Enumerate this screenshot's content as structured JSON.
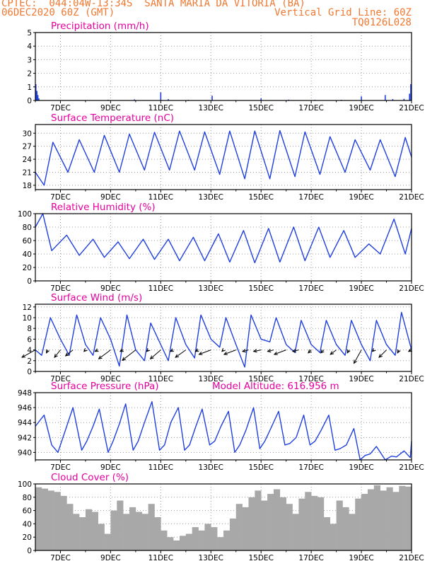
{
  "header": {
    "line1": "CPTEC:  044:04W-13:34S  SANTA MARIA DA VITORIA (BA)",
    "line2_left": "06DEC2020 60Z (GMT)",
    "line2_right": "Vertical Grid Line: 60Z",
    "line3_right": "TQ0126L028"
  },
  "colors": {
    "header": "#f07830",
    "title": "#e6009e",
    "line": "#1f3fe0",
    "cloud": "#a8a8a8",
    "grid": "#9a9a9a"
  },
  "chart_data": [
    {
      "type": "bar",
      "title": "Precipitation (mm/h)",
      "x_tick_labels": [
        "7DEC",
        "9DEC",
        "11DEC",
        "13DEC",
        "15DEC",
        "17DEC",
        "19DEC",
        "21DEC"
      ],
      "x_range": [
        6.0,
        21.0
      ],
      "ylim": [
        0,
        5
      ],
      "y_ticks": [
        0,
        1,
        2,
        3,
        4,
        5
      ],
      "x": [
        6.02,
        6.06,
        6.1,
        6.14,
        8.9,
        9.95,
        11.0,
        11.3,
        12.1,
        13.05,
        15.0,
        16.1,
        17.15,
        18.2,
        19.0,
        19.95,
        20.25,
        20.7,
        20.92,
        20.97
      ],
      "values": [
        1.2,
        0.7,
        0.4,
        0.15,
        0.05,
        0.08,
        0.6,
        0.1,
        0.05,
        0.35,
        0.15,
        0.06,
        0.05,
        0.05,
        0.3,
        0.4,
        0.1,
        0.12,
        0.5,
        1.2
      ]
    },
    {
      "type": "line",
      "title": "Surface Temperature (nC)",
      "x_tick_labels": [
        "7DEC",
        "9DEC",
        "11DEC",
        "13DEC",
        "15DEC",
        "17DEC",
        "19DEC",
        "21DEC"
      ],
      "ylim": [
        17,
        32
      ],
      "y_ticks": [
        18,
        21,
        24,
        27,
        30
      ],
      "series": [
        {
          "values": [
            [
              6.0,
              21.0
            ],
            [
              6.35,
              18.0
            ],
            [
              6.7,
              27.9
            ],
            [
              7.3,
              21.0
            ],
            [
              7.75,
              28.5
            ],
            [
              8.35,
              21.0
            ],
            [
              8.75,
              29.5
            ],
            [
              9.35,
              21.0
            ],
            [
              9.75,
              29.8
            ],
            [
              10.35,
              21.5
            ],
            [
              10.75,
              30.2
            ],
            [
              11.35,
              21.5
            ],
            [
              11.75,
              30.5
            ],
            [
              12.35,
              21.5
            ],
            [
              12.75,
              30.3
            ],
            [
              13.35,
              20.5
            ],
            [
              13.75,
              30.5
            ],
            [
              14.35,
              19.5
            ],
            [
              14.75,
              30.5
            ],
            [
              15.35,
              19.5
            ],
            [
              15.75,
              30.6
            ],
            [
              16.35,
              20.0
            ],
            [
              16.75,
              30.3
            ],
            [
              17.35,
              20.5
            ],
            [
              17.75,
              29.2
            ],
            [
              18.35,
              21.0
            ],
            [
              18.75,
              28.5
            ],
            [
              19.35,
              21.5
            ],
            [
              19.75,
              28.5
            ],
            [
              20.35,
              20.0
            ],
            [
              20.75,
              29.0
            ],
            [
              21.0,
              24.5
            ]
          ]
        }
      ]
    },
    {
      "type": "line",
      "title": "Relative Humidity (%)",
      "x_tick_labels": [
        "7DEC",
        "9DEC",
        "11DEC",
        "13DEC",
        "15DEC",
        "17DEC",
        "19DEC",
        "21DEC"
      ],
      "ylim": [
        0,
        100
      ],
      "y_ticks": [
        0,
        20,
        40,
        60,
        80,
        100
      ],
      "series": [
        {
          "values": [
            [
              6.0,
              80
            ],
            [
              6.3,
              100
            ],
            [
              6.65,
              45
            ],
            [
              7.25,
              68
            ],
            [
              7.75,
              38
            ],
            [
              8.3,
              62
            ],
            [
              8.75,
              35
            ],
            [
              9.3,
              58
            ],
            [
              9.75,
              33
            ],
            [
              10.3,
              62
            ],
            [
              10.75,
              32
            ],
            [
              11.3,
              62
            ],
            [
              11.75,
              30
            ],
            [
              12.3,
              65
            ],
            [
              12.75,
              30
            ],
            [
              13.3,
              70
            ],
            [
              13.75,
              28
            ],
            [
              14.3,
              75
            ],
            [
              14.75,
              27
            ],
            [
              15.3,
              78
            ],
            [
              15.75,
              28
            ],
            [
              16.3,
              80
            ],
            [
              16.75,
              30
            ],
            [
              17.3,
              80
            ],
            [
              17.75,
              35
            ],
            [
              18.3,
              75
            ],
            [
              18.75,
              35
            ],
            [
              19.3,
              55
            ],
            [
              19.75,
              40
            ],
            [
              20.3,
              92
            ],
            [
              20.75,
              40
            ],
            [
              21.0,
              78
            ]
          ]
        }
      ]
    },
    {
      "type": "line",
      "title": "Surface Wind (m/s)",
      "x_tick_labels": [
        "7DEC",
        "9DEC",
        "11DEC",
        "13DEC",
        "15DEC",
        "17DEC",
        "19DEC",
        "21DEC"
      ],
      "ylim": [
        0,
        12.5
      ],
      "y_ticks": [
        0,
        2,
        4,
        6,
        8,
        10,
        12
      ],
      "series": [
        {
          "values": [
            [
              6.0,
              4.0
            ],
            [
              6.25,
              3.0
            ],
            [
              6.6,
              10.0
            ],
            [
              7.0,
              6.0
            ],
            [
              7.35,
              3.0
            ],
            [
              7.65,
              10.5
            ],
            [
              8.0,
              5.0
            ],
            [
              8.3,
              3.0
            ],
            [
              8.6,
              10.0
            ],
            [
              9.0,
              6.0
            ],
            [
              9.35,
              1.0
            ],
            [
              9.65,
              10.5
            ],
            [
              10.0,
              4.0
            ],
            [
              10.35,
              2.0
            ],
            [
              10.6,
              9.0
            ],
            [
              11.0,
              5.0
            ],
            [
              11.3,
              2.0
            ],
            [
              11.6,
              10.0
            ],
            [
              12.0,
              5.0
            ],
            [
              12.35,
              2.5
            ],
            [
              12.6,
              10.5
            ],
            [
              13.0,
              6.0
            ],
            [
              13.35,
              4.5
            ],
            [
              13.6,
              10.0
            ],
            [
              14.0,
              5.0
            ],
            [
              14.35,
              0.8
            ],
            [
              14.6,
              10.5
            ],
            [
              15.0,
              6.0
            ],
            [
              15.35,
              5.5
            ],
            [
              15.6,
              10.0
            ],
            [
              16.0,
              5.0
            ],
            [
              16.35,
              3.5
            ],
            [
              16.6,
              9.5
            ],
            [
              17.0,
              5.0
            ],
            [
              17.35,
              3.5
            ],
            [
              17.6,
              9.5
            ],
            [
              18.0,
              5.0
            ],
            [
              18.35,
              3.0
            ],
            [
              18.6,
              9.5
            ],
            [
              19.0,
              5.0
            ],
            [
              19.35,
              2.0
            ],
            [
              19.6,
              9.5
            ],
            [
              20.0,
              5.0
            ],
            [
              20.35,
              3.0
            ],
            [
              20.6,
              11.0
            ],
            [
              21.0,
              4.0
            ]
          ]
        }
      ],
      "wind_arrows": [
        {
          "x": 6.0,
          "u": -9,
          "v": -5
        },
        {
          "x": 6.5,
          "u": -1,
          "v": -2
        },
        {
          "x": 7.0,
          "u": -4,
          "v": -5
        },
        {
          "x": 7.5,
          "u": -5,
          "v": -4
        },
        {
          "x": 8.0,
          "u": -1,
          "v": -1
        },
        {
          "x": 8.5,
          "u": -2,
          "v": -1
        },
        {
          "x": 9.0,
          "u": -8,
          "v": -6
        },
        {
          "x": 9.5,
          "u": -2,
          "v": -1
        },
        {
          "x": 10.0,
          "u": -9,
          "v": -7
        },
        {
          "x": 10.5,
          "u": -1,
          "v": -1
        },
        {
          "x": 11.0,
          "u": -7,
          "v": -6
        },
        {
          "x": 11.5,
          "u": -2,
          "v": -1
        },
        {
          "x": 12.0,
          "u": -7,
          "v": -5
        },
        {
          "x": 12.5,
          "u": -2,
          "v": -1
        },
        {
          "x": 13.0,
          "u": -8,
          "v": -3
        },
        {
          "x": 13.5,
          "u": -1,
          "v": -1
        },
        {
          "x": 14.0,
          "u": -8,
          "v": -3
        },
        {
          "x": 14.5,
          "u": -4,
          "v": -1
        },
        {
          "x": 15.0,
          "u": -5,
          "v": -1
        },
        {
          "x": 15.5,
          "u": -4,
          "v": -1
        },
        {
          "x": 16.0,
          "u": -8,
          "v": -3
        },
        {
          "x": 16.5,
          "u": -4,
          "v": -1
        },
        {
          "x": 17.0,
          "u": -2,
          "v": -2
        },
        {
          "x": 17.5,
          "u": -2,
          "v": -2
        },
        {
          "x": 18.0,
          "u": -4,
          "v": -3
        },
        {
          "x": 18.5,
          "u": -1,
          "v": -2
        },
        {
          "x": 19.0,
          "u": -5,
          "v": -9
        },
        {
          "x": 19.5,
          "u": -1,
          "v": -1
        },
        {
          "x": 20.0,
          "u": -5,
          "v": -5
        },
        {
          "x": 20.5,
          "u": -1,
          "v": -2
        },
        {
          "x": 21.0,
          "u": -2,
          "v": -1
        }
      ]
    },
    {
      "type": "line",
      "title": "Surface Pressure (hPa)",
      "model_altitude": "Model Altitude: 616.956 m",
      "x_tick_labels": [
        "7DEC",
        "9DEC",
        "11DEC",
        "13DEC",
        "15DEC",
        "17DEC",
        "19DEC",
        "21DEC"
      ],
      "ylim": [
        939,
        948
      ],
      "y_ticks": [
        940,
        942,
        944,
        946,
        948
      ],
      "series": [
        {
          "values": [
            [
              6.0,
              943.5
            ],
            [
              6.35,
              945.0
            ],
            [
              6.65,
              941.0
            ],
            [
              6.9,
              940.0
            ],
            [
              7.15,
              942.5
            ],
            [
              7.5,
              946.0
            ],
            [
              7.85,
              940.3
            ],
            [
              8.05,
              941.5
            ],
            [
              8.3,
              943.5
            ],
            [
              8.55,
              945.8
            ],
            [
              8.9,
              940.0
            ],
            [
              9.1,
              941.5
            ],
            [
              9.35,
              943.8
            ],
            [
              9.6,
              946.5
            ],
            [
              9.9,
              940.3
            ],
            [
              10.1,
              941.5
            ],
            [
              10.35,
              944.0
            ],
            [
              10.65,
              946.8
            ],
            [
              10.95,
              940.3
            ],
            [
              11.15,
              941.0
            ],
            [
              11.4,
              944.0
            ],
            [
              11.7,
              946.0
            ],
            [
              11.95,
              940.3
            ],
            [
              12.15,
              941.0
            ],
            [
              12.4,
              943.5
            ],
            [
              12.65,
              945.8
            ],
            [
              12.95,
              941.0
            ],
            [
              13.15,
              941.5
            ],
            [
              13.4,
              943.5
            ],
            [
              13.7,
              945.5
            ],
            [
              13.95,
              940.0
            ],
            [
              14.15,
              941.0
            ],
            [
              14.4,
              943.0
            ],
            [
              14.7,
              946.0
            ],
            [
              14.95,
              940.5
            ],
            [
              15.15,
              941.5
            ],
            [
              15.4,
              943.3
            ],
            [
              15.7,
              945.5
            ],
            [
              15.95,
              941.0
            ],
            [
              16.15,
              941.2
            ],
            [
              16.4,
              942.0
            ],
            [
              16.7,
              945.0
            ],
            [
              16.95,
              941.0
            ],
            [
              17.15,
              941.5
            ],
            [
              17.4,
              943.0
            ],
            [
              17.7,
              945.0
            ],
            [
              17.95,
              940.3
            ],
            [
              18.15,
              940.5
            ],
            [
              18.4,
              941.0
            ],
            [
              18.7,
              943.2
            ],
            [
              18.95,
              939.0
            ],
            [
              19.15,
              939.6
            ],
            [
              19.35,
              939.8
            ],
            [
              19.6,
              940.8
            ],
            [
              19.95,
              939.0
            ],
            [
              20.2,
              939.5
            ],
            [
              20.4,
              939.4
            ],
            [
              20.7,
              940.2
            ],
            [
              20.95,
              939.3
            ],
            [
              21.0,
              941.5
            ]
          ]
        }
      ]
    },
    {
      "type": "bar",
      "title": "Cloud Cover (%)",
      "x_tick_labels": [
        "7DEC",
        "9DEC",
        "11DEC",
        "13DEC",
        "15DEC",
        "17DEC",
        "19DEC",
        "21DEC"
      ],
      "ylim": [
        0,
        100
      ],
      "y_ticks": [
        0,
        20,
        40,
        60,
        80,
        100
      ],
      "x": [
        6.0,
        6.25,
        6.5,
        6.75,
        7.0,
        7.25,
        7.5,
        7.75,
        8.0,
        8.25,
        8.5,
        8.75,
        9.0,
        9.25,
        9.5,
        9.75,
        10.0,
        10.25,
        10.5,
        10.75,
        11.0,
        11.25,
        11.5,
        11.75,
        12.0,
        12.25,
        12.5,
        12.75,
        13.0,
        13.25,
        13.5,
        13.75,
        14.0,
        14.25,
        14.5,
        14.75,
        15.0,
        15.25,
        15.5,
        15.75,
        16.0,
        16.25,
        16.5,
        16.75,
        17.0,
        17.25,
        17.5,
        17.75,
        18.0,
        18.25,
        18.5,
        18.75,
        19.0,
        19.25,
        19.5,
        19.75,
        20.0,
        20.25,
        20.5,
        20.75
      ],
      "values": [
        95,
        93,
        90,
        88,
        82,
        70,
        55,
        50,
        62,
        58,
        40,
        25,
        60,
        75,
        55,
        65,
        58,
        55,
        70,
        50,
        30,
        20,
        15,
        22,
        25,
        35,
        30,
        40,
        35,
        20,
        30,
        48,
        70,
        65,
        80,
        90,
        75,
        85,
        92,
        80,
        70,
        55,
        78,
        88,
        82,
        80,
        50,
        40,
        75,
        65,
        55,
        78,
        85,
        92,
        98,
        90,
        95,
        88,
        97,
        96
      ]
    }
  ]
}
